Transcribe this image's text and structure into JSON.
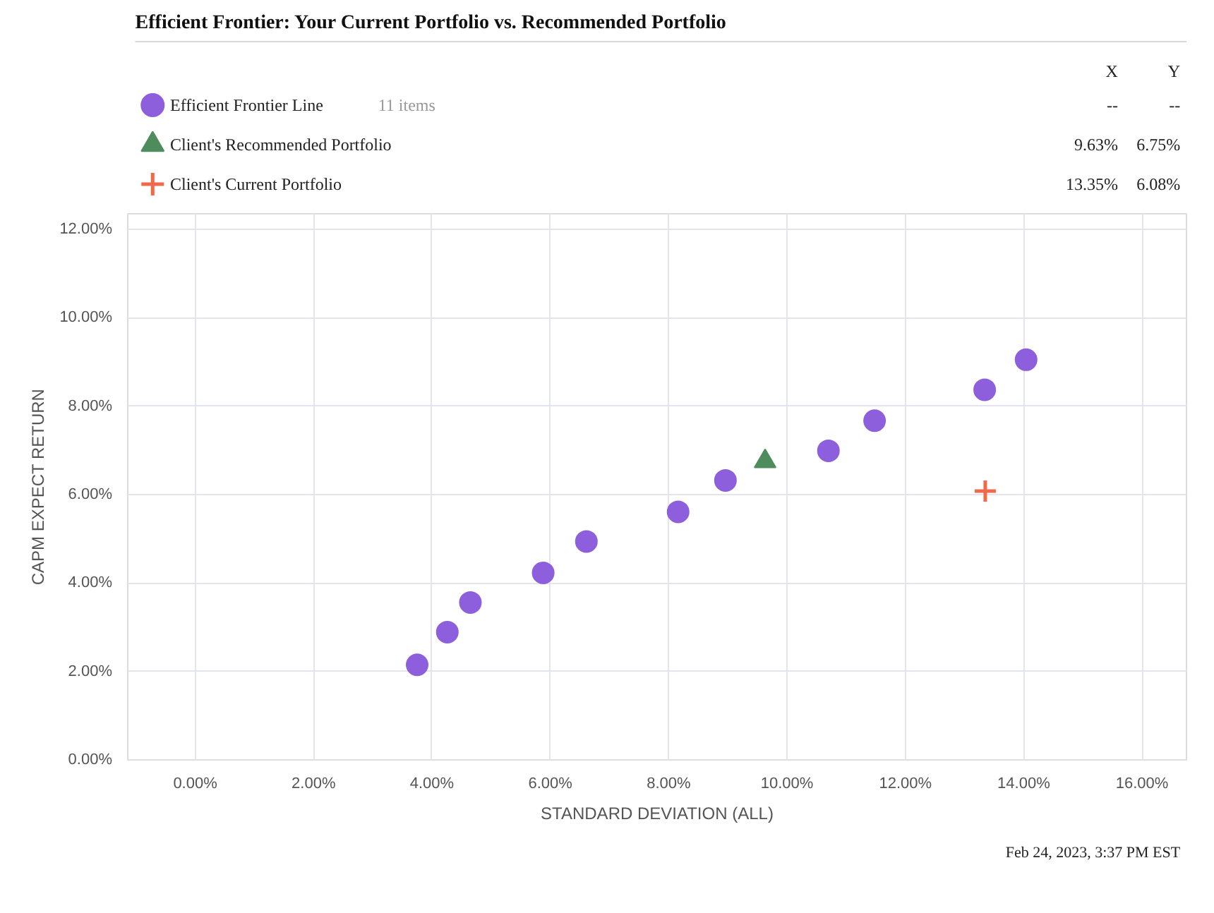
{
  "chart_data": {
    "type": "scatter",
    "title": "Efficient Frontier: Your Current Portfolio vs. Recommended Portfolio",
    "xlabel": "STANDARD DEVIATION (ALL)",
    "ylabel": "CAPM EXPECT RETURN",
    "series": [
      {
        "name": "Efficient Frontier Line",
        "color": "#8e5fdc",
        "marker": "circle",
        "x": [
          3.75,
          4.26,
          4.65,
          5.88,
          6.61,
          8.16,
          8.96,
          10.7,
          11.48,
          13.34,
          14.04
        ],
        "values": [
          2.15,
          2.89,
          3.56,
          4.23,
          4.94,
          5.61,
          6.32,
          6.99,
          7.67,
          8.37,
          9.05
        ]
      },
      {
        "name": "Client's Recommended Portfolio",
        "color": "#4e8c5e",
        "marker": "triangle",
        "x": [
          9.63
        ],
        "values": [
          6.75
        ]
      },
      {
        "name": "Client's Current Portfolio",
        "color": "#f0694a",
        "marker": "cross",
        "x": [
          13.35
        ],
        "values": [
          6.08
        ]
      }
    ],
    "annotations": [
      "11 items",
      "X",
      "Y",
      "--",
      "--",
      "9.63%",
      "6.75%",
      "13.35%",
      "6.08%",
      "Feb 24, 2023, 3:37 PM EST"
    ],
    "xlim": [
      -1.14,
      16.75
    ],
    "ylim": [
      0,
      12.35
    ],
    "xticks": [
      {
        "value": 0,
        "label": "0.00%"
      },
      {
        "value": 2,
        "label": "2.00%"
      },
      {
        "value": 4,
        "label": "4.00%"
      },
      {
        "value": 6,
        "label": "6.00%"
      },
      {
        "value": 8,
        "label": "8.00%"
      },
      {
        "value": 10,
        "label": "10.00%"
      },
      {
        "value": 12,
        "label": "12.00%"
      },
      {
        "value": 14,
        "label": "14.00%"
      },
      {
        "value": 16,
        "label": "16.00%"
      }
    ],
    "yticks": [
      {
        "value": 0,
        "label": "0.00%"
      },
      {
        "value": 2,
        "label": "2.00%"
      },
      {
        "value": 4,
        "label": "4.00%"
      },
      {
        "value": 6,
        "label": "6.00%"
      },
      {
        "value": 8,
        "label": "8.00%"
      },
      {
        "value": 10,
        "label": "10.00%"
      },
      {
        "value": 12,
        "label": "12.00%"
      }
    ],
    "grid": true,
    "legend": "top"
  }
}
